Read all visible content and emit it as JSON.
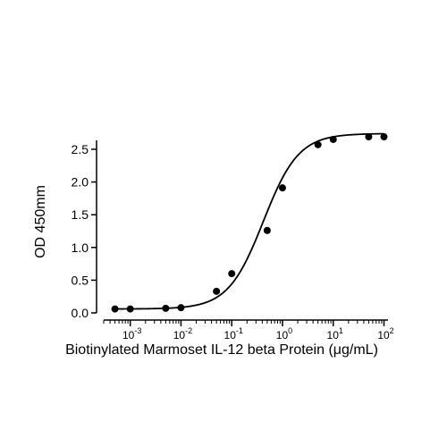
{
  "chart_data": {
    "type": "scatter",
    "xlabel": "Biotinylated Marmoset IL-12 beta Protein (μg/mL)",
    "ylabel": "OD 450mm",
    "x_scale": "log",
    "xlim": [
      0.0003,
      120
    ],
    "ylim": [
      0,
      2.8
    ],
    "x_ticks": [
      {
        "value": 0.001,
        "base": "10",
        "exp": "-3"
      },
      {
        "value": 0.01,
        "base": "10",
        "exp": "-2"
      },
      {
        "value": 0.1,
        "base": "10",
        "exp": "-1"
      },
      {
        "value": 1,
        "base": "10",
        "exp": "0"
      },
      {
        "value": 10,
        "base": "10",
        "exp": "1"
      },
      {
        "value": 100,
        "base": "10",
        "exp": "2"
      }
    ],
    "y_ticks": [
      {
        "value": 0.0,
        "label": "0.0"
      },
      {
        "value": 0.5,
        "label": "0.5"
      },
      {
        "value": 1.0,
        "label": "1.0"
      },
      {
        "value": 1.5,
        "label": "1.5"
      },
      {
        "value": 2.0,
        "label": "2.0"
      },
      {
        "value": 2.5,
        "label": "2.5"
      }
    ],
    "grid": false,
    "legend": "none",
    "series": [
      {
        "x": [
          0.0005,
          0.001,
          0.005,
          0.01,
          0.05,
          0.1,
          0.5,
          1,
          5,
          10,
          50,
          100
        ],
        "y": [
          0.06,
          0.06,
          0.07,
          0.08,
          0.33,
          0.6,
          1.26,
          1.91,
          2.57,
          2.65,
          2.69,
          2.69
        ],
        "marker": "circle",
        "color": "#000000"
      }
    ],
    "fit_curve": {
      "model": "4PL",
      "bottom": 0.06,
      "top": 2.74,
      "ec50": 0.42,
      "hill": 1.25,
      "color": "#000000"
    }
  }
}
